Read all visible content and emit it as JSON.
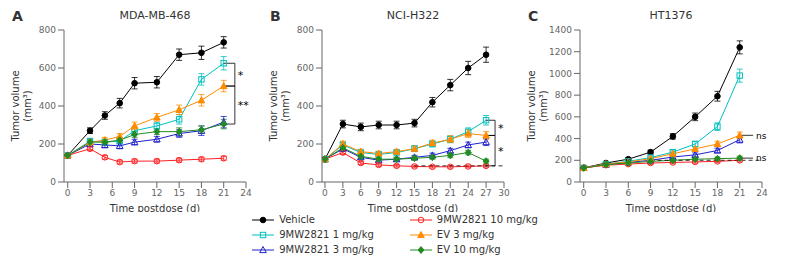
{
  "chart_data": [
    {
      "type": "line",
      "title": "MDA-MB-468",
      "x_label": "Time postdose (d)",
      "y_label": "Tumor volume\n(mm³)",
      "xlim": [
        -0.5,
        24
      ],
      "xticks": [
        0,
        3,
        6,
        9,
        12,
        15,
        18,
        21,
        24
      ],
      "ylim": [
        0,
        800
      ],
      "yticks": [
        0,
        200,
        400,
        600,
        800
      ],
      "x": [
        0,
        3,
        5,
        7,
        9,
        12,
        15,
        18,
        21
      ],
      "series": [
        {
          "name": "Vehicle",
          "color": "#000000",
          "marker": "circle",
          "values": [
            140,
            270,
            350,
            415,
            520,
            525,
            670,
            680,
            735
          ],
          "errors": [
            5,
            15,
            20,
            25,
            30,
            30,
            30,
            35,
            30
          ]
        },
        {
          "name": "9MW2821 1 mg/kg",
          "color": "#00BFBF",
          "marker": "open_square",
          "values": [
            140,
            215,
            210,
            215,
            270,
            295,
            330,
            540,
            625
          ],
          "errors": [
            5,
            15,
            15,
            15,
            20,
            20,
            25,
            30,
            35
          ]
        },
        {
          "name": "9MW2821 3 mg/kg",
          "color": "#2020CD",
          "marker": "open_triangle",
          "values": [
            140,
            200,
            195,
            190,
            210,
            225,
            255,
            270,
            315
          ],
          "errors": [
            5,
            15,
            15,
            15,
            15,
            15,
            20,
            25,
            30
          ]
        },
        {
          "name": "9MW2821 10 mg/kg",
          "color": "#FF2020",
          "marker": "open_circle",
          "values": [
            140,
            175,
            130,
            105,
            110,
            110,
            115,
            120,
            125
          ],
          "errors": [
            5,
            10,
            10,
            10,
            10,
            10,
            10,
            10,
            10
          ]
        },
        {
          "name": "EV 3 mg/kg",
          "color": "#FF8C00",
          "marker": "triangle",
          "values": [
            140,
            210,
            220,
            240,
            295,
            340,
            380,
            430,
            505
          ],
          "errors": [
            5,
            15,
            15,
            15,
            20,
            20,
            25,
            30,
            30
          ]
        },
        {
          "name": "EV 10 mg/kg",
          "color": "#228B22",
          "marker": "diamond",
          "values": [
            140,
            210,
            210,
            220,
            250,
            265,
            265,
            275,
            305
          ],
          "errors": [
            5,
            15,
            15,
            15,
            15,
            15,
            20,
            20,
            25
          ]
        }
      ],
      "annotations": [
        {
          "type": "panel_label",
          "label": "A"
        },
        {
          "type": "bracket",
          "x_from": 21,
          "x_to": 22.5,
          "y_from": 505,
          "y_to": 625,
          "label": "*"
        },
        {
          "type": "bracket",
          "x_from": 21,
          "x_to": 22.5,
          "y_from": 305,
          "y_to": 505,
          "label": "**"
        }
      ]
    },
    {
      "type": "line",
      "title": "NCI-H322",
      "x_label": "Time postdose (d)",
      "y_label": "Tumor volume\n(mm³)",
      "xlim": [
        -0.5,
        30
      ],
      "xticks": [
        0,
        3,
        6,
        9,
        12,
        15,
        18,
        21,
        24,
        27,
        30
      ],
      "ylim": [
        0,
        800
      ],
      "yticks": [
        0,
        200,
        400,
        600,
        800
      ],
      "x": [
        0,
        3,
        6,
        9,
        12,
        15,
        18,
        21,
        24,
        27
      ],
      "series": [
        {
          "name": "Vehicle",
          "color": "#000000",
          "marker": "circle",
          "values": [
            120,
            305,
            290,
            300,
            300,
            310,
            420,
            510,
            600,
            670
          ],
          "errors": [
            5,
            20,
            20,
            20,
            20,
            20,
            25,
            30,
            35,
            40
          ]
        },
        {
          "name": "9MW2821 1 mg/kg",
          "color": "#00BFBF",
          "marker": "open_square",
          "values": [
            120,
            195,
            155,
            145,
            155,
            175,
            200,
            225,
            265,
            325
          ],
          "errors": [
            5,
            15,
            12,
            12,
            12,
            15,
            15,
            18,
            20,
            25
          ]
        },
        {
          "name": "9MW2821 3 mg/kg",
          "color": "#2020CD",
          "marker": "open_triangle",
          "values": [
            120,
            175,
            130,
            115,
            120,
            130,
            140,
            165,
            195,
            210
          ],
          "errors": [
            5,
            12,
            10,
            10,
            10,
            10,
            12,
            12,
            15,
            18
          ]
        },
        {
          "name": "9MW2821 10 mg/kg",
          "color": "#FF2020",
          "marker": "open_circle",
          "values": [
            120,
            155,
            100,
            90,
            85,
            82,
            80,
            80,
            82,
            85
          ],
          "errors": [
            5,
            10,
            8,
            8,
            7,
            7,
            7,
            7,
            7,
            7
          ]
        },
        {
          "name": "EV 3 mg/kg",
          "color": "#FF8C00",
          "marker": "triangle",
          "values": [
            120,
            200,
            160,
            150,
            160,
            175,
            205,
            225,
            255,
            245
          ],
          "errors": [
            5,
            15,
            12,
            12,
            12,
            15,
            15,
            18,
            20,
            20
          ]
        },
        {
          "name": "EV 10 mg/kg",
          "color": "#228B22",
          "marker": "diamond",
          "values": [
            120,
            180,
            135,
            120,
            120,
            125,
            130,
            140,
            155,
            110
          ],
          "errors": [
            5,
            12,
            10,
            10,
            10,
            10,
            10,
            12,
            12,
            10
          ]
        }
      ],
      "annotations": [
        {
          "type": "panel_label",
          "label": "B"
        },
        {
          "type": "bracket",
          "x_from": 27,
          "x_to": 28.5,
          "y_from": 245,
          "y_to": 325,
          "label": "*"
        },
        {
          "type": "bracket",
          "x_from": 27,
          "x_to": 28.5,
          "y_from": 85,
          "y_to": 245,
          "label": "*"
        },
        {
          "type": "hline",
          "x_from": 15,
          "x_to": 30,
          "y": 85,
          "line_style": "dashed"
        }
      ]
    },
    {
      "type": "line",
      "title": "HT1376",
      "x_label": "Time postdose (d)",
      "y_label": "Tumor volume\n(mm³)",
      "xlim": [
        -0.5,
        24
      ],
      "xticks": [
        0,
        3,
        6,
        9,
        12,
        15,
        18,
        21,
        24
      ],
      "ylim": [
        0,
        1400
      ],
      "yticks": [
        0,
        200,
        400,
        600,
        800,
        1000,
        1200,
        1400
      ],
      "x": [
        0,
        3,
        6,
        9,
        12,
        15,
        18,
        21
      ],
      "series": [
        {
          "name": "Vehicle",
          "color": "#000000",
          "marker": "circle",
          "values": [
            130,
            175,
            210,
            275,
            420,
            600,
            790,
            1240
          ],
          "errors": [
            5,
            12,
            15,
            18,
            25,
            35,
            45,
            60
          ]
        },
        {
          "name": "9MW2821 1 mg/kg",
          "color": "#00BFBF",
          "marker": "open_square",
          "values": [
            130,
            165,
            190,
            225,
            275,
            350,
            510,
            980
          ],
          "errors": [
            5,
            12,
            15,
            15,
            18,
            25,
            35,
            60
          ]
        },
        {
          "name": "9MW2821 3 mg/kg",
          "color": "#2020CD",
          "marker": "open_triangle",
          "values": [
            130,
            160,
            180,
            200,
            230,
            250,
            290,
            390
          ],
          "errors": [
            5,
            12,
            12,
            15,
            15,
            18,
            20,
            30
          ]
        },
        {
          "name": "9MW2821 10 mg/kg",
          "color": "#FF2020",
          "marker": "open_circle",
          "values": [
            130,
            155,
            165,
            175,
            180,
            185,
            190,
            200
          ],
          "errors": [
            5,
            10,
            10,
            12,
            12,
            12,
            12,
            15
          ]
        },
        {
          "name": "EV 3 mg/kg",
          "color": "#FF8C00",
          "marker": "triangle",
          "values": [
            130,
            165,
            185,
            215,
            260,
            305,
            350,
            430
          ],
          "errors": [
            5,
            12,
            12,
            15,
            18,
            20,
            25,
            30
          ]
        },
        {
          "name": "EV 10 mg/kg",
          "color": "#228B22",
          "marker": "diamond",
          "values": [
            130,
            160,
            175,
            190,
            200,
            210,
            215,
            220
          ],
          "errors": [
            5,
            12,
            12,
            12,
            15,
            15,
            15,
            18
          ]
        }
      ],
      "annotations": [
        {
          "type": "panel_label",
          "label": "C"
        },
        {
          "type": "tick",
          "x_from": 21,
          "x_to": 22.8,
          "y": 430,
          "label": "ns"
        },
        {
          "type": "tick",
          "x_from": 21,
          "x_to": 22.8,
          "y": 220,
          "label": "ns"
        },
        {
          "type": "hline",
          "x_from": 9,
          "x_to": 24,
          "y": 200,
          "line_style": "dashed"
        }
      ]
    }
  ]
}
